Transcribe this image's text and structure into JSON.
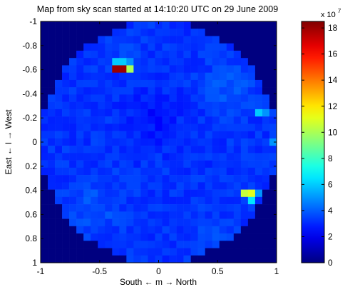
{
  "chart_data": {
    "type": "heatmap",
    "title": "Map from sky scan started at 14:10:20 UTC on 29 June 2009",
    "xlabel": "South ← m → North",
    "ylabel": "East ← l → West",
    "xlim": [
      -1,
      1
    ],
    "ylim": [
      -1,
      1
    ],
    "y_reversed": true,
    "x_ticks": [
      "-1",
      "-0.5",
      "0",
      "0.5",
      "1"
    ],
    "y_ticks": [
      "-1",
      "-0.8",
      "-0.6",
      "-0.4",
      "-0.2",
      "0",
      "0.2",
      "0.4",
      "0.6",
      "0.8",
      "1"
    ],
    "colorbar": {
      "min": 0,
      "max": 18.5,
      "exponent_label": "x 10",
      "exponent": "7",
      "ticks": [
        "0",
        "2",
        "4",
        "6",
        "8",
        "10",
        "12",
        "14",
        "16",
        "18"
      ]
    },
    "grid_size": 33,
    "disk_radius": 1.0,
    "outside_value": 0,
    "background_level": 3.2,
    "hot_spots": [
      {
        "m": -0.33,
        "l": -0.59,
        "value": 18.0
      },
      {
        "m": -0.27,
        "l": -0.59,
        "value": 10.0
      },
      {
        "m": -0.33,
        "l": -0.65,
        "value": 6.0
      },
      {
        "m": -0.27,
        "l": -0.65,
        "value": 5.0
      },
      {
        "m": 0.73,
        "l": 0.41,
        "value": 10.5
      },
      {
        "m": 0.79,
        "l": 0.41,
        "value": 11.0
      },
      {
        "m": 0.79,
        "l": 0.47,
        "value": 6.5
      },
      {
        "m": 0.85,
        "l": 0.41,
        "value": 5.0
      },
      {
        "m": 0.85,
        "l": -0.23,
        "value": 6.0
      },
      {
        "m": 0.91,
        "l": -0.23,
        "value": 5.0
      },
      {
        "m": 0.97,
        "l": 0.0,
        "value": 5.0
      },
      {
        "m": -1.0,
        "l": 0.0,
        "value": 3.5
      }
    ]
  }
}
